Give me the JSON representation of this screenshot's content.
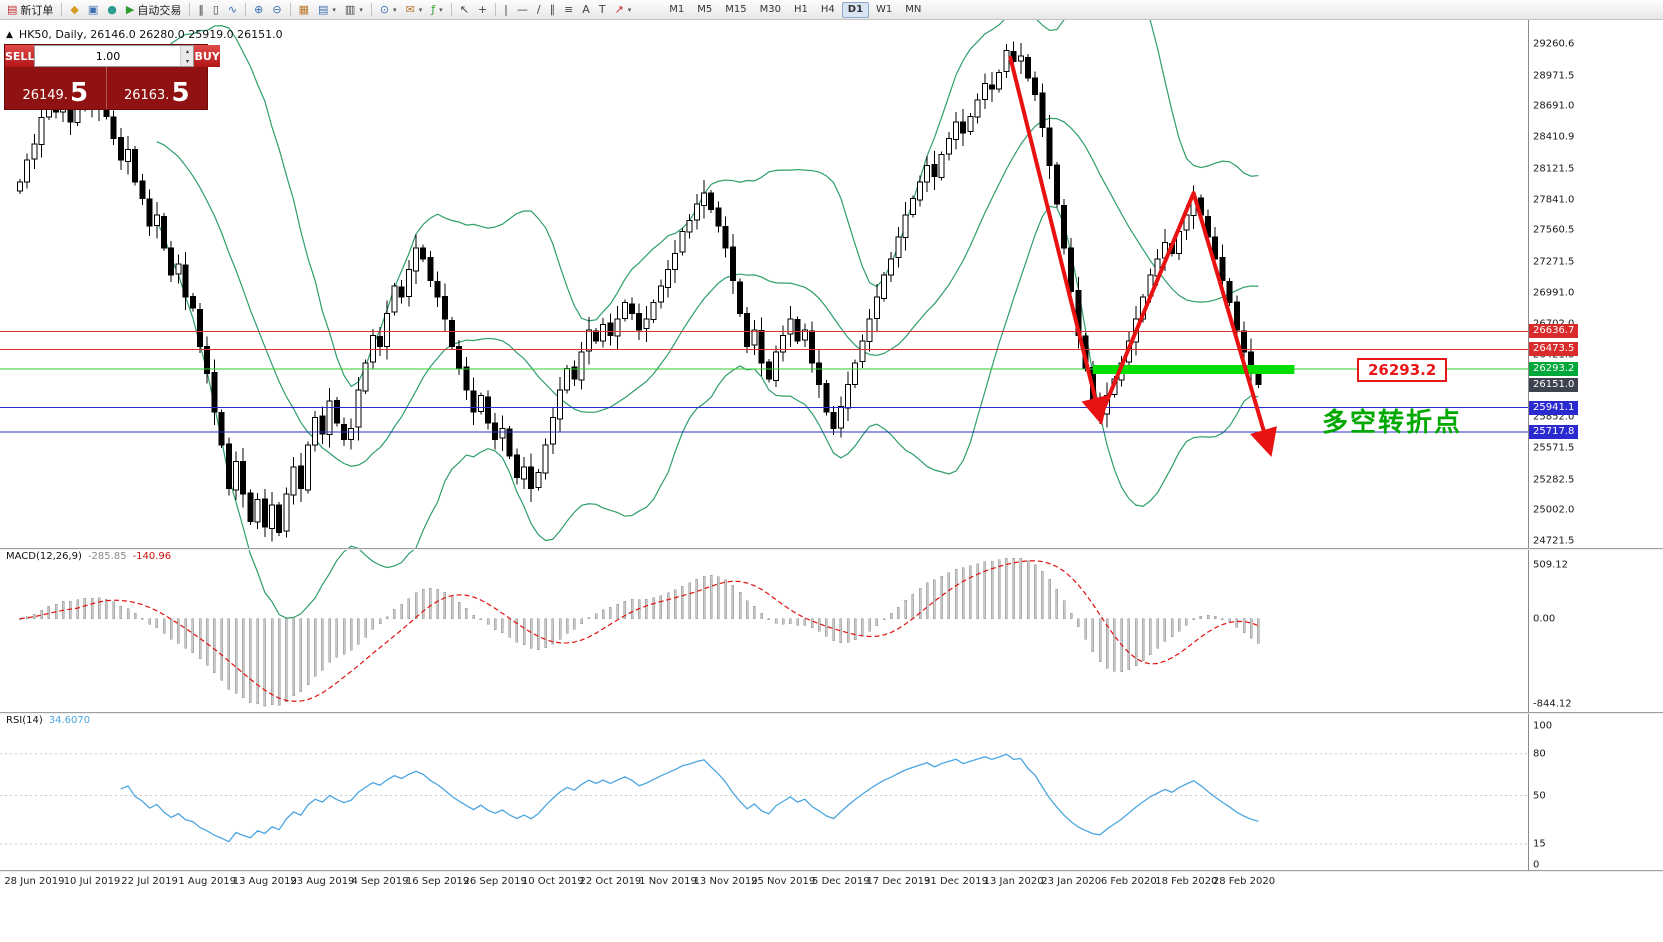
{
  "toolbar": {
    "new_order": "新订单",
    "autotrade": "自动交易",
    "timeframes": [
      "M1",
      "M5",
      "M15",
      "M30",
      "H1",
      "H4",
      "D1",
      "W1",
      "MN"
    ],
    "active_timeframe": "D1"
  },
  "icons": {
    "new_order": "▤",
    "market_watch": "◆",
    "data_window": "▣",
    "navigator": "●",
    "autotrade_play": "▶",
    "bar_chart": "‖",
    "candle_chart": "▯",
    "line_chart": "∿",
    "zoom_in": "⊕",
    "zoom_out": "⊖",
    "tile_windows": "▦",
    "new_chart": "▤",
    "profiles": "▥",
    "period": "⊙",
    "templates": "✉",
    "indicators": "ƒ",
    "cursor": "↖",
    "crosshair": "+",
    "vline": "|",
    "hline": "—",
    "trendline": "/",
    "channel": "∥",
    "fibo": "≡",
    "text_tool": "A",
    "label_tool": "T",
    "arrows_tool": "↗",
    "caret": "▾",
    "panel_toggle": "▲",
    "spin_up": "▴",
    "spin_down": "▾"
  },
  "chart": {
    "symbol_title": "HK50, Daily, 26146.0 26280.0 25919.0 26151.0"
  },
  "trade_panel": {
    "sell": "SELL",
    "buy": "BUY",
    "volume": "1.00",
    "sell_price": "26149.5",
    "buy_price": "26163.5"
  },
  "price_scale": {
    "ticks": [
      "29260.6",
      "28971.5",
      "28691.0",
      "28410.9",
      "28121.5",
      "27841.0",
      "27560.5",
      "27271.5",
      "26991.0",
      "26702.0",
      "26421.5",
      "25852.0",
      "25571.5",
      "25282.5",
      "25002.0",
      "24721.5"
    ]
  },
  "price_lines": [
    {
      "price": 26636.7,
      "label": "26636.7",
      "line_color": "#e03030",
      "tag_bg": "#d92b2b",
      "draw_line": true
    },
    {
      "price": 26473.5,
      "label": "26473.5",
      "line_color": "#e03030",
      "tag_bg": "#d92b2b",
      "draw_line": true
    },
    {
      "price": 26293.2,
      "label": "26293.2",
      "line_color": "#33cc33",
      "tag_bg": "#00a83c",
      "draw_line": true
    },
    {
      "price": 26151.0,
      "label": "26151.0",
      "line_color": "#555a60",
      "tag_bg": "#3d4450",
      "draw_line": false
    },
    {
      "price": 25941.1,
      "label": "25941.1",
      "line_color": "#2a2ad0",
      "tag_bg": "#2a2ad0",
      "draw_line": true
    },
    {
      "price": 25717.8,
      "label": "25717.8",
      "line_color": "#2a2ad0",
      "tag_bg": "#2a2ad0",
      "draw_line": true
    }
  ],
  "highlight": {
    "price": 26293.2,
    "bar_start": 149,
    "bar_end": 177,
    "color": "#00dd00"
  },
  "arrow": {
    "color": "#e81212",
    "points": [
      {
        "bar": 137.5,
        "price": 29150
      },
      {
        "bar": 150,
        "price": 25850
      },
      {
        "bar": 163,
        "price": 27900
      },
      {
        "bar": 173.5,
        "price": 25560
      }
    ]
  },
  "annotations": {
    "price_label": "26293.2",
    "turning_point": "多空转折点"
  },
  "chart_data": {
    "type": "candlestick",
    "symbol": "HK50",
    "period": "Daily",
    "ohlc_display": "26146.0 26280.0 25919.0 26151.0",
    "closes": [
      28000,
      28200,
      28350,
      28590,
      28700,
      28640,
      28760,
      28550,
      28700,
      28820,
      28680,
      28750,
      28600,
      28400,
      28200,
      28300,
      28000,
      27850,
      27600,
      27700,
      27400,
      27150,
      27250,
      26950,
      26850,
      26500,
      26250,
      25900,
      25600,
      25200,
      25450,
      25150,
      24900,
      25100,
      24850,
      25050,
      24800,
      25150,
      25400,
      25200,
      25600,
      25850,
      25700,
      26000,
      25800,
      25650,
      25750,
      26100,
      26350,
      26600,
      26500,
      26800,
      27050,
      26950,
      27200,
      27400,
      27300,
      27100,
      26950,
      26750,
      26500,
      26300,
      26100,
      25900,
      26050,
      25800,
      25650,
      25750,
      25500,
      25300,
      25400,
      25200,
      25350,
      25600,
      25850,
      26100,
      26300,
      26200,
      26450,
      26650,
      26550,
      26700,
      26600,
      26750,
      26900,
      26800,
      26650,
      26750,
      26900,
      27050,
      27200,
      27350,
      27550,
      27650,
      27800,
      27900,
      27750,
      27600,
      27400,
      27100,
      26800,
      26500,
      26650,
      26350,
      26200,
      26450,
      26600,
      26750,
      26550,
      26650,
      26350,
      26150,
      25900,
      25750,
      25950,
      26150,
      26350,
      26550,
      26750,
      26950,
      27150,
      27300,
      27500,
      27700,
      27850,
      28000,
      28150,
      28050,
      28250,
      28400,
      28550,
      28450,
      28600,
      28750,
      28900,
      28850,
      29000,
      29200,
      29100,
      29150,
      28950,
      28800,
      28500,
      28150,
      27800,
      27400,
      27000,
      26600,
      26300,
      26000,
      25880,
      26050,
      26200,
      26350,
      26550,
      26750,
      26950,
      27150,
      27300,
      27450,
      27350,
      27550,
      27700,
      27850,
      27700,
      27500,
      27300,
      27100,
      26900,
      26650,
      26450,
      26280,
      26151
    ],
    "date_labels": [
      {
        "bar": 2,
        "text": "28 Jun 2019"
      },
      {
        "bar": 10,
        "text": "10 Jul 2019"
      },
      {
        "bar": 18,
        "text": "22 Jul 2019"
      },
      {
        "bar": 26,
        "text": "1 Aug 2019"
      },
      {
        "bar": 34,
        "text": "13 Aug 2019"
      },
      {
        "bar": 42,
        "text": "23 Aug 2019"
      },
      {
        "bar": 50,
        "text": "4 Sep 2019"
      },
      {
        "bar": 58,
        "text": "16 Sep 2019"
      },
      {
        "bar": 66,
        "text": "26 Sep 2019"
      },
      {
        "bar": 74,
        "text": "10 Oct 2019"
      },
      {
        "bar": 82,
        "text": "22 Oct 2019"
      },
      {
        "bar": 90,
        "text": "1 Nov 2019"
      },
      {
        "bar": 98,
        "text": "13 Nov 2019"
      },
      {
        "bar": 106,
        "text": "25 Nov 2019"
      },
      {
        "bar": 114,
        "text": "5 Dec 2019"
      },
      {
        "bar": 122,
        "text": "17 Dec 2019"
      },
      {
        "bar": 130,
        "text": "31 Dec 2019"
      },
      {
        "bar": 138,
        "text": "13 Jan 2020"
      },
      {
        "bar": 146,
        "text": "23 Jan 2020"
      },
      {
        "bar": 154,
        "text": "6 Feb 2020"
      },
      {
        "bar": 162,
        "text": "18 Feb 2020"
      },
      {
        "bar": 170,
        "text": "28 Feb 2020"
      }
    ],
    "indicators": {
      "bollinger": {
        "period": 20,
        "deviation": 2,
        "color": "#2f9e68"
      },
      "macd": {
        "label": "MACD(12,26,9)",
        "value_main": "-285.85",
        "value_signal": "-140.96",
        "scale_labels": [
          "509.12",
          "0.00",
          "-844.12"
        ],
        "histogram_color": "#c9c9c9",
        "signal_color": "#e01010"
      },
      "rsi": {
        "label": "RSI(14)",
        "value": "34.6070",
        "scale_values": [
          100,
          80,
          50,
          15,
          0
        ],
        "levels": [
          80,
          50,
          15
        ],
        "line_color": "#4da6e0"
      }
    }
  }
}
